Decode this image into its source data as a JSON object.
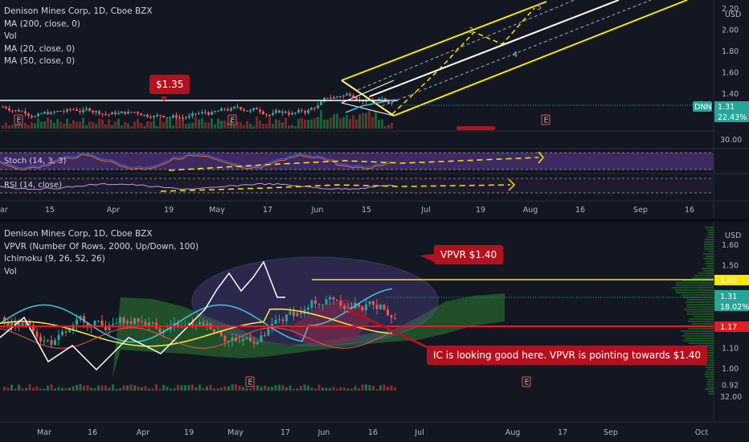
{
  "colors": {
    "background": "#131722",
    "up": "#26a69a",
    "down": "#ef5350",
    "pitchfork": "#ffe600",
    "white": "#ffffff",
    "callout": "#b2121e",
    "ichimoku_green": "#2e7d32",
    "ichimoku_red": "#8b1a24",
    "vpvr_green": "#1b5e20",
    "cyan": "#3ec6e0",
    "oscillator_bg": "#3d2a63"
  },
  "top_chart": {
    "legend": [
      "Denison Mines Corp, 1D, Cboe BZX",
      "MA (200, close, 0)",
      "Vol",
      "MA (20, close, 0)",
      "MA (50, close, 0)"
    ],
    "currency": "USD",
    "price_axis": [
      "2.20",
      "2.00",
      "1.80",
      "1.60",
      "1.40"
    ],
    "volume_axis_label": "30.00",
    "last_price": "1.31",
    "last_change": "22.43%",
    "ticker_badge": "DNN",
    "callout": "$1.35",
    "earnings_marker": "E",
    "pitchfork_labels": [
      "3",
      "4",
      "5"
    ],
    "stoch_label": "Stoch (14, 3, 3)",
    "rsi_label": "RSI (14, close)",
    "time_axis": [
      "ar",
      "15",
      "Apr",
      "19",
      "May",
      "17",
      "Jun",
      "15",
      "Jul",
      "19",
      "Aug",
      "16",
      "Sep",
      "16"
    ]
  },
  "bottom_chart": {
    "legend": [
      "Denison Mines Corp, 1D, Cboe BZX",
      "VPVR (Number Of Rows, 2000, Up/Down, 100)",
      "Ichimoku (9, 26, 52, 26)",
      "Vol"
    ],
    "currency": "USD",
    "price_axis": [
      "1.60",
      "1.50",
      "1.30",
      "1.20",
      "1.10",
      "1.00",
      "0.92"
    ],
    "volume_axis_label": "32.00",
    "level_high": "1.40",
    "level_low": "1.17",
    "last_price": "1.31",
    "last_change": "18.02%",
    "callout_vpvr": "VPVR $1.40",
    "callout_ic": "IC is looking good here. VPVR  is pointing towards $1.40",
    "earnings_marker": "E",
    "time_axis": [
      "Mar",
      "16",
      "Apr",
      "19",
      "May",
      "17",
      "Jun",
      "16",
      "Jul",
      "Aug",
      "17",
      "Sep",
      "Oct"
    ]
  },
  "chart_data": [
    {
      "type": "candlestick",
      "title": "Denison Mines Corp, 1D, Cboe BZX",
      "y_axis": {
        "unit": "USD",
        "ticks": [
          1.4,
          1.6,
          1.8,
          2.0,
          2.2
        ],
        "range": [
          1.18,
          2.22
        ]
      },
      "x_ticks": [
        "ar",
        "15",
        "Apr",
        "19",
        "May",
        "17",
        "Jun",
        "15",
        "Jul",
        "19",
        "Aug",
        "16",
        "Sep",
        "16"
      ],
      "last_price": 1.31,
      "horizontal_level": 1.35,
      "annotations": [
        "$1.35",
        "3",
        "4",
        "5"
      ],
      "indicators": [
        "MA (200, close, 0)",
        "Vol",
        "MA (20, close, 0)",
        "MA (50, close, 0)",
        "Stoch (14, 3, 3)",
        "RSI (14, close)"
      ]
    },
    {
      "type": "candlestick",
      "title": "Denison Mines Corp, 1D, Cboe BZX",
      "y_axis": {
        "unit": "USD",
        "ticks": [
          0.92,
          1.0,
          1.1,
          1.2,
          1.3,
          1.4,
          1.5,
          1.6
        ],
        "range": [
          0.9,
          1.66
        ]
      },
      "x_ticks": [
        "Mar",
        "16",
        "Apr",
        "19",
        "May",
        "17",
        "Jun",
        "16",
        "Jul",
        "Aug",
        "17",
        "Sep",
        "Oct"
      ],
      "last_price": 1.31,
      "horizontal_levels": [
        1.4,
        1.17
      ],
      "annotations": [
        "VPVR $1.40",
        "IC is looking good here. VPVR  is pointing towards $1.40"
      ],
      "indicators": [
        "VPVR (Number Of Rows, 2000, Up/Down, 100)",
        "Ichimoku (9, 26, 52, 26)",
        "Vol"
      ]
    }
  ]
}
